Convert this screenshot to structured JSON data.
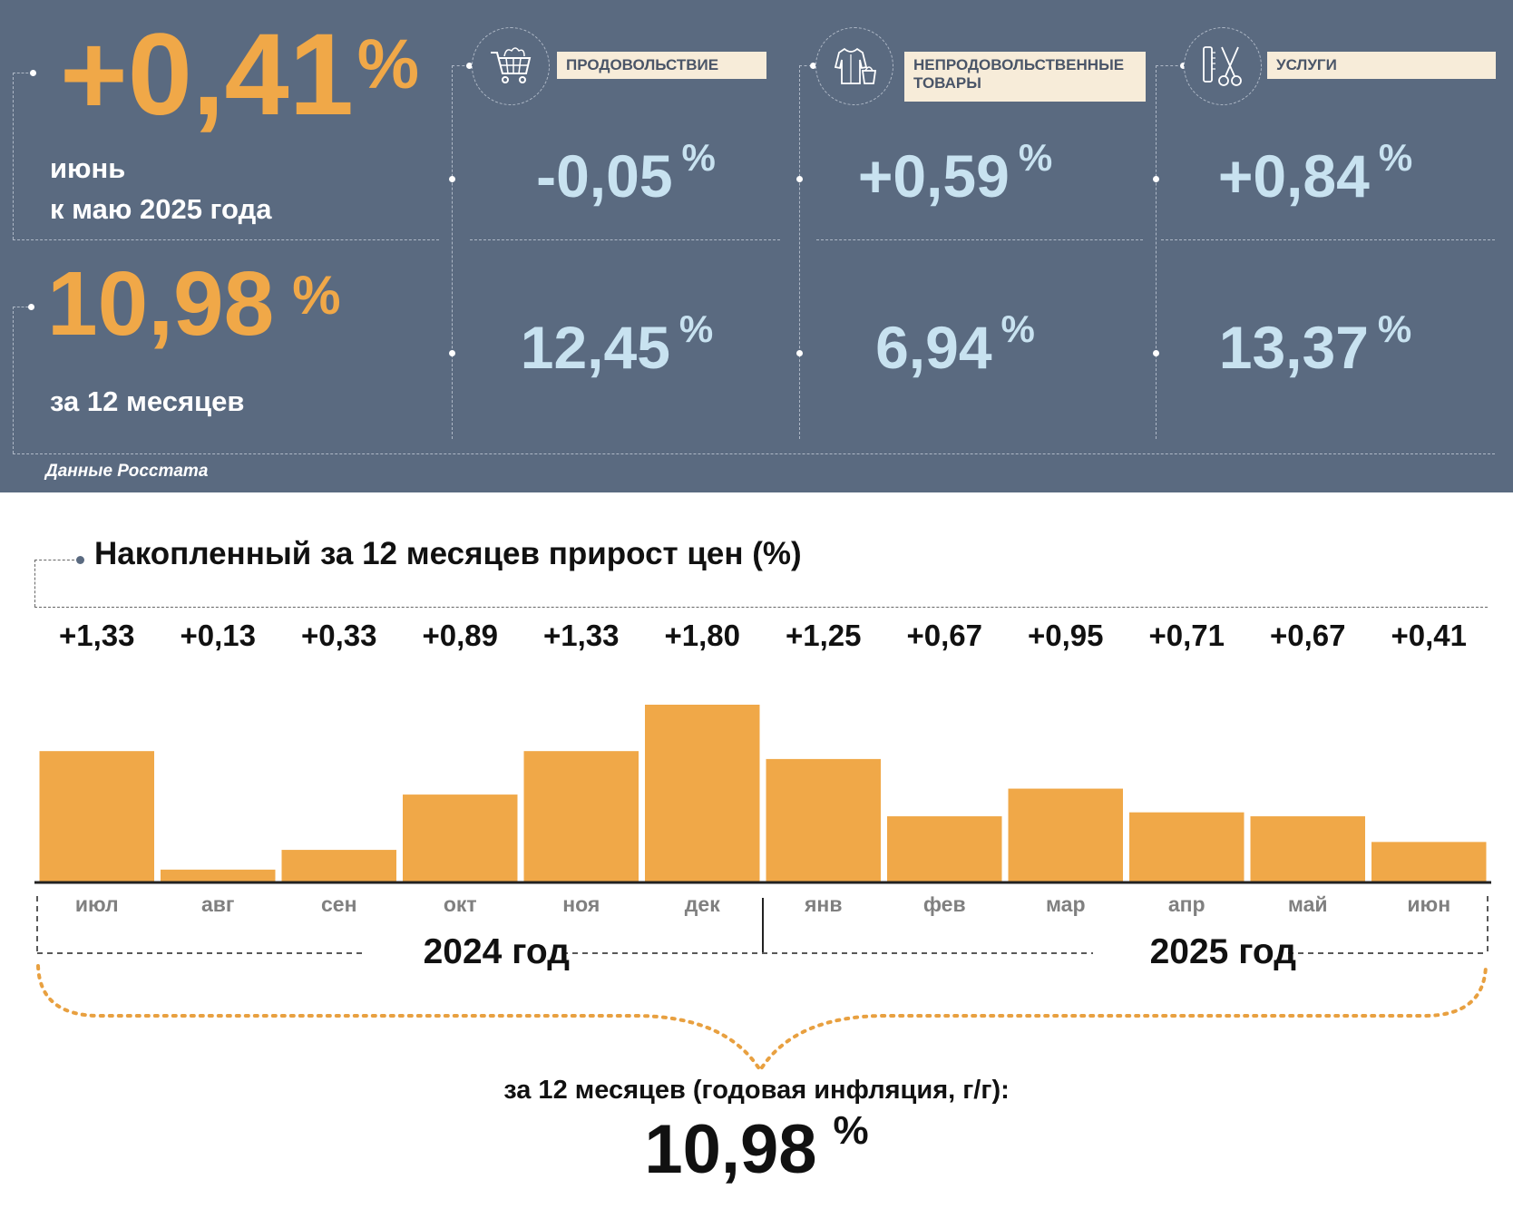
{
  "monthly": {
    "value": "+0,41",
    "unit": "%",
    "label_line1": "июнь",
    "label_line2": "к маю 2025 года"
  },
  "annual": {
    "value": "10,98",
    "unit": "%",
    "label": "за 12 месяцев"
  },
  "categories": [
    {
      "label_line1": "ПРОДОВОЛЬСТВИЕ",
      "label_line2": "",
      "icon": "shopping-cart-icon",
      "monthly": "-0,05",
      "annual": "12,45",
      "unit": "%"
    },
    {
      "label_line1": "НЕПРОДОВОЛЬСТВЕННЫЕ",
      "label_line2": "ТОВАРЫ",
      "icon": "clothes-icon",
      "monthly": "+0,59",
      "annual": "6,94",
      "unit": "%"
    },
    {
      "label_line1": "УСЛУГИ",
      "label_line2": "",
      "icon": "scissors-comb-icon",
      "monthly": "+0,84",
      "annual": "13,37",
      "unit": "%"
    }
  ],
  "source": "Данные Росстата",
  "colors": {
    "panel": "#5a6a80",
    "accent_orange": "#f0a848",
    "light_blue": "#c8e2f0",
    "label_bg": "#f7ecd9",
    "bar": "#f0a848"
  },
  "chart_data": {
    "type": "bar",
    "title": "Накопленный за 12 месяцев прирост цен (%)",
    "categories": [
      "июл",
      "авг",
      "сен",
      "окт",
      "ноя",
      "дек",
      "янв",
      "фев",
      "мар",
      "апр",
      "май",
      "июн"
    ],
    "values": [
      1.33,
      0.13,
      0.33,
      0.89,
      1.33,
      1.8,
      1.25,
      0.67,
      0.95,
      0.71,
      0.67,
      0.41
    ],
    "value_labels": [
      "+1,33",
      "+0,13",
      "+0,33",
      "+0,89",
      "+1,33",
      "+1,80",
      "+1,25",
      "+0,67",
      "+0,95",
      "+0,71",
      "+0,67",
      "+0,41"
    ],
    "year_groups": [
      {
        "label": "2024 год",
        "count": 6
      },
      {
        "label": "2025 год",
        "count": 6
      }
    ],
    "ylim": [
      0,
      1.8
    ],
    "grid": false,
    "legend": "none",
    "summary_caption": "за 12 месяцев (годовая инфляция, г/г):",
    "summary_value": "10,98",
    "summary_unit": "%"
  }
}
